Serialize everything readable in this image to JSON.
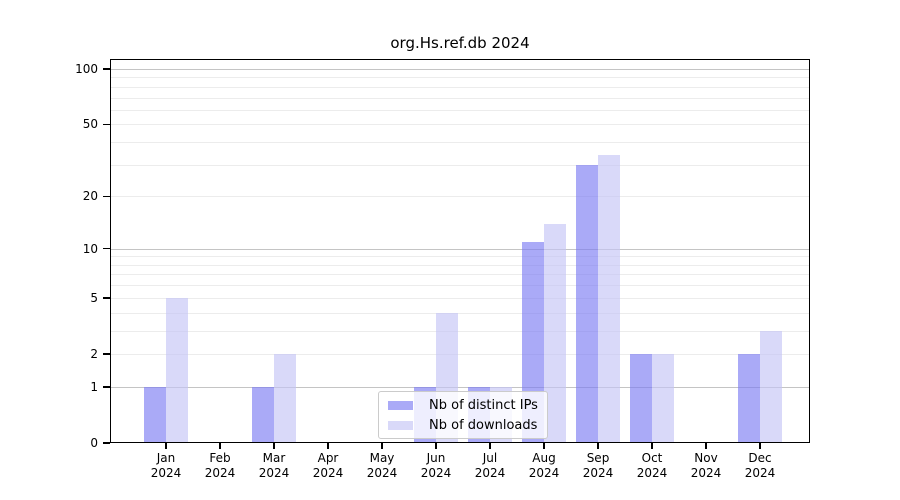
{
  "chart_data": {
    "type": "bar",
    "title": "org.Hs.ref.db 2024",
    "year_label": "2024",
    "categories": [
      "Jan",
      "Feb",
      "Mar",
      "Apr",
      "May",
      "Jun",
      "Jul",
      "Aug",
      "Sep",
      "Oct",
      "Nov",
      "Dec"
    ],
    "series": [
      {
        "name": "Nb of distinct IPs",
        "color": "#7c7cf3",
        "alpha": 0.65,
        "values": [
          1,
          0,
          1,
          0,
          0,
          1,
          1,
          11,
          30,
          2,
          0,
          2
        ]
      },
      {
        "name": "Nb of downloads",
        "color": "#c5c5f6",
        "alpha": 0.65,
        "values": [
          5,
          0,
          2,
          0,
          0,
          4,
          1,
          14,
          34,
          2,
          0,
          3
        ]
      }
    ],
    "xlabel": "",
    "ylabel": "",
    "yscale": "log1p",
    "ylim": [
      0,
      100
    ],
    "yticks": [
      0,
      1,
      2,
      5,
      10,
      20,
      50,
      100
    ],
    "major_gridlines": [
      1,
      10,
      100
    ],
    "minor_gridlines": [
      2,
      3,
      4,
      5,
      6,
      7,
      8,
      9,
      20,
      30,
      40,
      50,
      60,
      70,
      80,
      90
    ],
    "grid": true,
    "legend_position": "lower center",
    "colors": {
      "major_grid": "#c4c4c4",
      "minor_grid": "#ececec",
      "axis": "#000000",
      "text": "#000000",
      "legend_border": "#cbcbcb",
      "legend_bg": "#ffffff"
    }
  }
}
